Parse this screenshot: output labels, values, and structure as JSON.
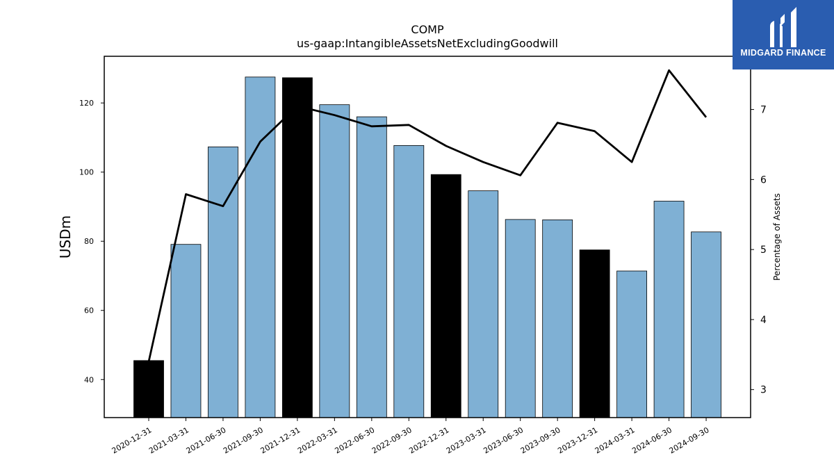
{
  "chart_data": {
    "type": "bar",
    "title": "COMP",
    "subtitle": "us-gaap:IntangibleAssetsNetExcludingGoodwill",
    "ylabel": "USDm",
    "y2label": "Percentage of Assets",
    "categories": [
      "2020-12-31",
      "2021-03-31",
      "2021-06-30",
      "2021-09-30",
      "2021-12-31",
      "2022-03-31",
      "2022-06-30",
      "2022-09-30",
      "2022-12-31",
      "2023-03-31",
      "2023-06-30",
      "2023-09-30",
      "2023-12-31",
      "2024-03-31",
      "2024-06-30",
      "2024-09-30"
    ],
    "series": [
      {
        "axis": "left",
        "kind": "bar",
        "values": [
          45.5,
          79.1,
          107.3,
          127.5,
          127.3,
          119.5,
          116.0,
          107.7,
          99.3,
          94.6,
          86.3,
          86.2,
          77.5,
          71.4,
          91.6,
          82.7
        ],
        "highlight": [
          true,
          false,
          false,
          false,
          true,
          false,
          false,
          false,
          true,
          false,
          false,
          false,
          true,
          false,
          false,
          false
        ]
      },
      {
        "axis": "right",
        "kind": "line",
        "values": [
          3.4,
          5.79,
          5.62,
          6.54,
          7.05,
          6.92,
          6.76,
          6.78,
          6.48,
          6.25,
          6.06,
          6.81,
          6.69,
          6.25,
          7.56,
          6.89
        ]
      }
    ],
    "ylim": [
      29,
      133.5
    ],
    "y2lim": [
      2.6,
      7.76
    ],
    "yticks": [
      40,
      60,
      80,
      100,
      120
    ],
    "y2ticks": [
      3,
      4,
      5,
      6,
      7
    ],
    "colors": {
      "bar": "#7fb0d4",
      "highlight": "#000000",
      "line": "#000000"
    },
    "grid": false,
    "legend": "none"
  },
  "logo": {
    "text": "MIDGARD FINANCE",
    "background": "#2a5db0"
  }
}
